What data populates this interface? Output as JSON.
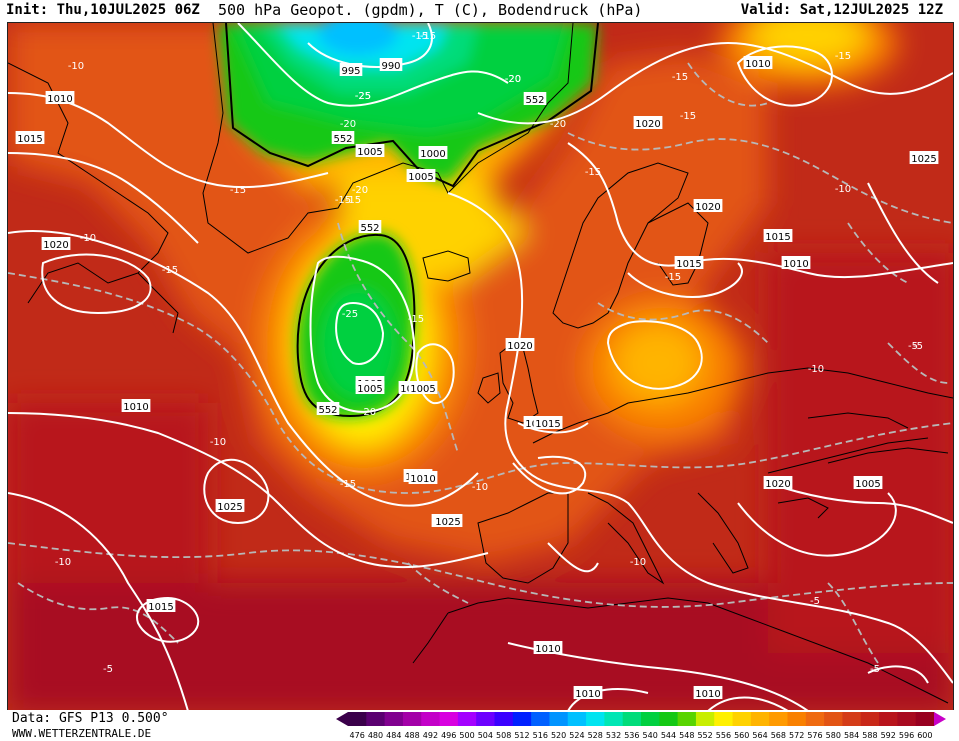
{
  "header": {
    "init": "Init: Thu,10JUL2025 06Z",
    "title": "500 hPa Geopot. (gpdm), T (C), Bodendruck (hPa)",
    "valid": "Valid: Sat,12JUL2025 12Z"
  },
  "footer": {
    "data_source": "Data: GFS P13 0.500°",
    "website": "WWW.WETTERZENTRALE.DE"
  },
  "legend": {
    "values": [
      "476",
      "480",
      "484",
      "488",
      "492",
      "496",
      "500",
      "504",
      "508",
      "512",
      "516",
      "520",
      "524",
      "528",
      "532",
      "536",
      "540",
      "544",
      "548",
      "552",
      "556",
      "560",
      "564",
      "568",
      "572",
      "576",
      "580",
      "584",
      "588",
      "592",
      "596",
      "600"
    ],
    "colors": [
      "#3a004a",
      "#5a0070",
      "#80008f",
      "#a300a8",
      "#c300c8",
      "#d800e0",
      "#a400ff",
      "#6c00ff",
      "#3a00ff",
      "#0020ff",
      "#0060ff",
      "#0094ff",
      "#00c0ff",
      "#00e4f0",
      "#00e6b4",
      "#00dc7a",
      "#00d040",
      "#14c814",
      "#58d400",
      "#c8ee00",
      "#fff000",
      "#ffd200",
      "#ffb400",
      "#ff9a00",
      "#f98000",
      "#ef6a10",
      "#e25414",
      "#d43c18",
      "#c82818",
      "#b8141c",
      "#a80a20",
      "#980020"
    ]
  },
  "map": {
    "background": "#c12a18",
    "pressure_labels": [
      "1010",
      "1015",
      "1020",
      "1010",
      "995",
      "990",
      "1005",
      "1025",
      "1015",
      "1010",
      "1020",
      "1010",
      "1005",
      "1000",
      "1005",
      "1025",
      "1020",
      "1015",
      "1015",
      "1010",
      "1020",
      "1005",
      "1005",
      "1015",
      "1010",
      "1015",
      "1010",
      "1015",
      "1025",
      "1010",
      "1010",
      "1005",
      "1010",
      "1025",
      "1020"
    ],
    "temp_labels": [
      "-10",
      "-15",
      "-20",
      "-25",
      "-20",
      "-15",
      "-20",
      "-15",
      "-15",
      "-10",
      "-15",
      "-15",
      "-20",
      "-15",
      "-25",
      "-15",
      "-20",
      "-15",
      "-10",
      "-10",
      "-10",
      "-15",
      "-10",
      "-5",
      "-10",
      "-5",
      "-5",
      "-5",
      "-10",
      "-15",
      "-15",
      "-20",
      "-25",
      "-15",
      "-5"
    ],
    "geopot_labels": [
      "552",
      "552",
      "552",
      "552"
    ]
  }
}
